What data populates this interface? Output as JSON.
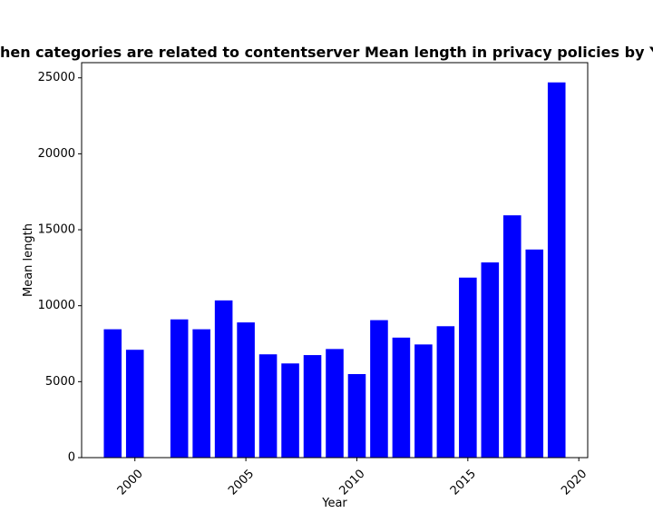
{
  "chart_data": {
    "type": "bar",
    "title": "When categories are related to contentserver Mean length in privacy policies by Year",
    "xlabel": "Year",
    "ylabel": "Mean length",
    "x": [
      1999,
      2000,
      2002,
      2003,
      2004,
      2005,
      2006,
      2007,
      2008,
      2009,
      2010,
      2011,
      2012,
      2013,
      2014,
      2015,
      2016,
      2017,
      2018,
      2019
    ],
    "values": [
      8450,
      7100,
      9100,
      8450,
      10350,
      8900,
      6800,
      6200,
      6750,
      7150,
      5500,
      9050,
      7900,
      7450,
      8650,
      11850,
      12850,
      15950,
      13700,
      24700
    ],
    "xlim": [
      1997.6,
      2020.4
    ],
    "ylim": [
      0,
      26000
    ],
    "xticks": [
      2000,
      2005,
      2010,
      2015,
      2020
    ],
    "yticks": [
      0,
      5000,
      10000,
      15000,
      20000,
      25000
    ],
    "bar_color": "#0000ff",
    "grid": false,
    "legend": "none"
  }
}
